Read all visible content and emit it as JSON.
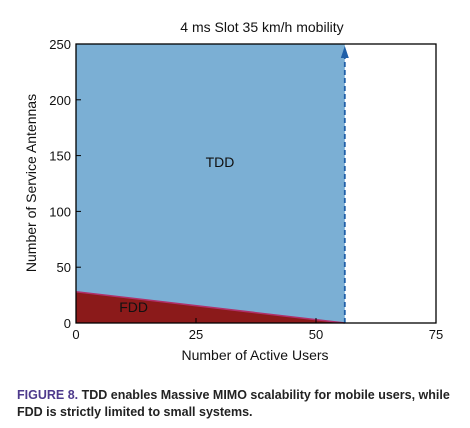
{
  "chart_data": {
    "type": "area",
    "title": "4 ms Slot 35 km/h mobility",
    "xlabel": "Number of Active Users",
    "ylabel": "Number of Service Antennas",
    "xlim": [
      0,
      75
    ],
    "ylim": [
      0,
      250
    ],
    "xticks": [
      0,
      25,
      50,
      75
    ],
    "yticks": [
      0,
      50,
      100,
      150,
      200,
      250
    ],
    "grid": false,
    "regions": [
      {
        "name": "TDD",
        "label": "TDD",
        "color": "#7bafd4",
        "x_range": [
          0,
          56
        ],
        "y_top": 250
      },
      {
        "name": "FDD",
        "label": "FDD",
        "color": "#8b1a1a",
        "boundary": [
          [
            0,
            28
          ],
          [
            56,
            0
          ]
        ]
      }
    ],
    "annotations": [
      {
        "type": "dashed-arrow",
        "x": 56,
        "y_from": 0,
        "y_to": 250,
        "color": "#1f5fa8"
      }
    ],
    "region_labels": [
      {
        "text": "TDD",
        "x": 27,
        "y": 140
      },
      {
        "text": "FDD",
        "x": 9,
        "y": 10
      }
    ]
  },
  "caption": {
    "label": "FIGURE 8.",
    "text": "TDD enables Massive MIMO scalability for mobile users, while FDD is strictly limited to small systems."
  }
}
